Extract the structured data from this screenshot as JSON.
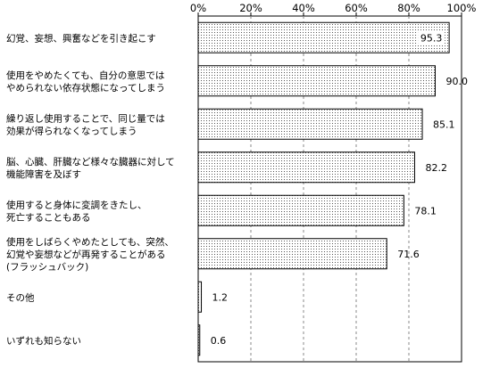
{
  "chart_data": {
    "type": "bar",
    "orientation": "horizontal",
    "categories": [
      "幻覚、妄想、興奮などを引き起こす",
      "使用をやめたくても、自分の意思では\nやめられない依存状態になってしまう",
      "繰り返し使用することで、同じ量では\n効果が得られなくなってしまう",
      "脳、心臓、肝臓など様々な臓器に対して\n機能障害を及ぼす",
      "使用すると身体に変調をきたし、\n死亡することもある",
      "使用をしばらくやめたとしても、突然、\n幻覚や妄想などが再発することがある\n(フラッシュバック)",
      "その他",
      "いずれも知らない"
    ],
    "values": [
      95.3,
      90.0,
      85.1,
      82.2,
      78.1,
      71.6,
      1.2,
      0.6
    ],
    "value_labels": [
      "95.3",
      "90.0",
      "85.1",
      "82.2",
      "78.1",
      "71.6",
      "1.2",
      "0.6"
    ],
    "xlim": [
      0,
      100
    ],
    "x_ticks": [
      "0%",
      "20%",
      "40%",
      "60%",
      "80%",
      "100%"
    ],
    "grid": "vertical-dashed",
    "bar_pattern": "dotted",
    "colors": {
      "bar_fill": "#ffffff",
      "bar_dots": "#555555",
      "bar_border": "#000000",
      "grid": "#888888"
    }
  }
}
